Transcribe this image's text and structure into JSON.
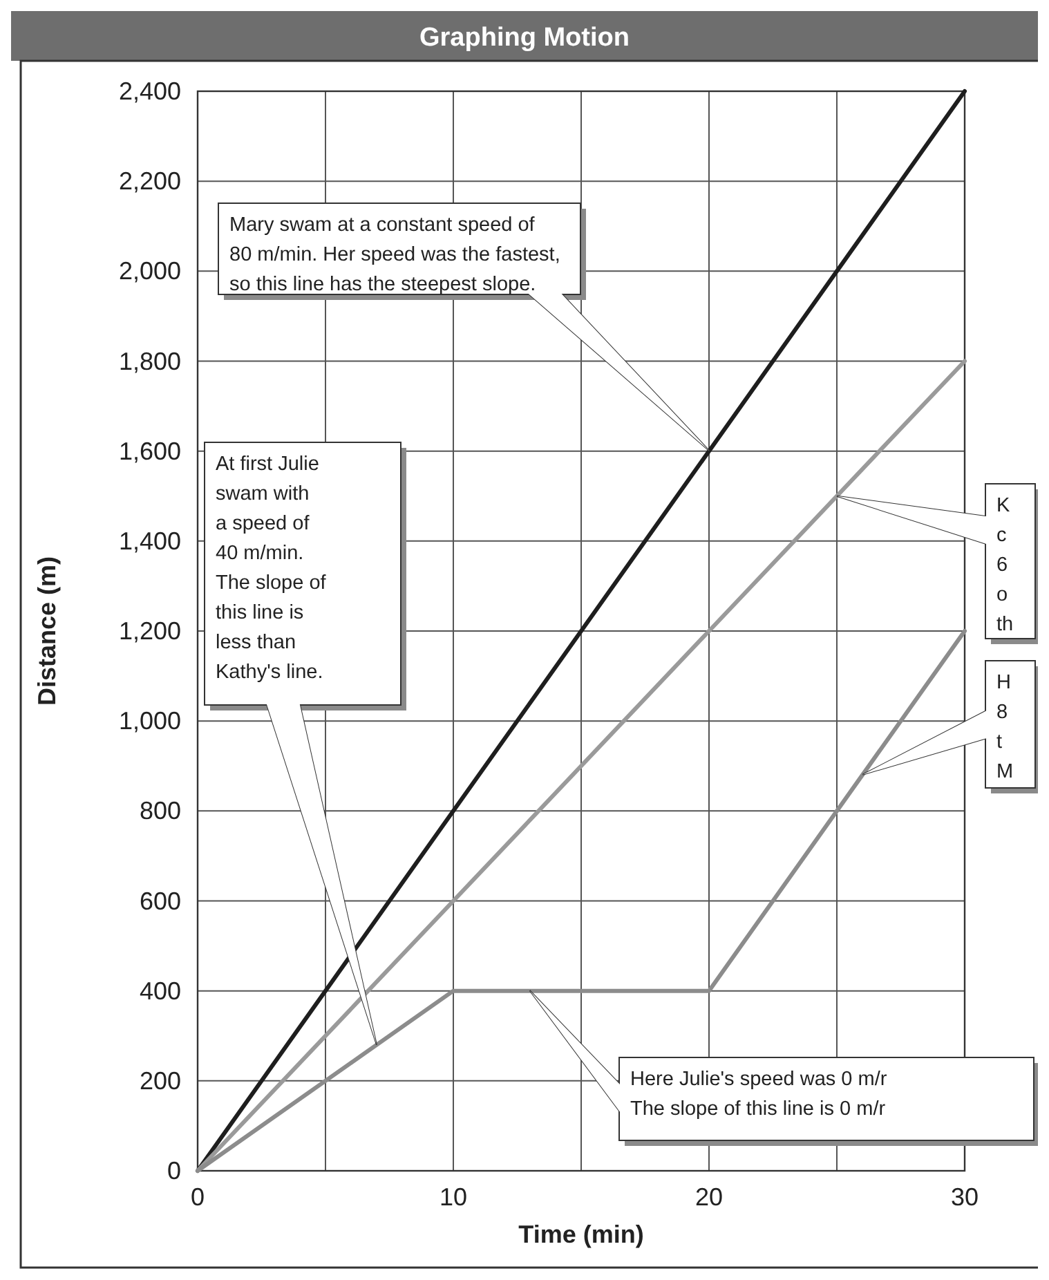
{
  "chart_data": {
    "type": "line",
    "title": "Graphing Motion",
    "xlabel": "Time (min)",
    "ylabel": "Distance (m)",
    "x": [
      0,
      10,
      20,
      30
    ],
    "series": [
      {
        "color": "#1e1e1e",
        "values": [
          0,
          800,
          1600,
          2400
        ]
      },
      {
        "color": "#9a9a9a",
        "values": [
          0,
          600,
          1200,
          1800
        ]
      },
      {
        "color": "#8c8c8c",
        "values": [
          0,
          400,
          400,
          1200
        ]
      }
    ],
    "xlim": [
      0,
      30
    ],
    "ylim": [
      0,
      2400
    ],
    "xticks": [
      0,
      {
        "value": 5,
        "label": null
      },
      10,
      {
        "value": 15,
        "label": null
      },
      20,
      {
        "value": 25,
        "label": null
      },
      30
    ],
    "yticks": [
      0,
      200,
      400,
      600,
      800,
      {
        "value": 1000,
        "label": "1,000"
      },
      {
        "value": 1200,
        "label": "1,200"
      },
      {
        "value": 1400,
        "label": "1,400"
      },
      {
        "value": 1600,
        "label": "1,600"
      },
      {
        "value": 1800,
        "label": "1,800"
      },
      {
        "value": 2000,
        "label": "2,000"
      },
      {
        "value": 2200,
        "label": "2,200"
      },
      {
        "value": 2400,
        "label": "2,400"
      }
    ],
    "grid": true,
    "marker": "none",
    "line_style": "solid",
    "annotations": [
      "Mary swam at a constant speed of\n80 m/min. Her speed was the fastest,\nso this line has the steepest slope.",
      {
        "text": "At first Julie\nswam with\na speed of\n40 m/min.\nThe slope of\nthis line is\nless than\nKathy's line.",
        "x": 7,
        "y": 280
      },
      {
        "text": "K\nc\n6\no\nth",
        "x": 25,
        "y": 1500
      },
      "H\n8\nt\nM",
      "Here Julie's speed was 0 m/r\nThe slope of this line is 0 m/r"
    ]
  }
}
